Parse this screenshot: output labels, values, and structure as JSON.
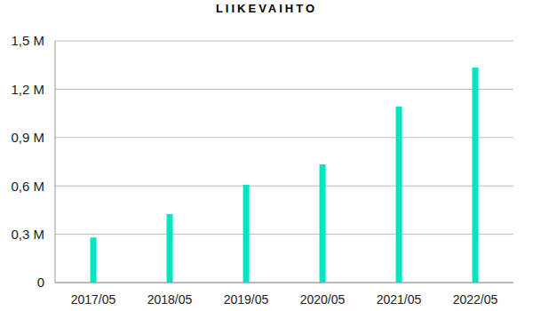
{
  "chart_data": {
    "type": "bar",
    "title": "LIIKEVAIHTO",
    "categories": [
      "2017/05",
      "2018/05",
      "2019/05",
      "2020/05",
      "2021/05",
      "2022/05"
    ],
    "values": [
      0.28,
      0.425,
      0.607,
      0.733,
      1.092,
      1.335
    ],
    "color": "#00e6c3",
    "ylim": [
      0,
      1.5
    ],
    "yticks": [
      0,
      {
        "value": 0.3,
        "label": "0,3 M"
      },
      {
        "value": 0.6,
        "label": "0,6 M"
      },
      {
        "value": 0.9,
        "label": "0,9 M"
      },
      {
        "value": 1.2,
        "label": "1,2 M"
      },
      {
        "value": 1.5,
        "label": "1,5 M"
      }
    ],
    "grid": true
  }
}
